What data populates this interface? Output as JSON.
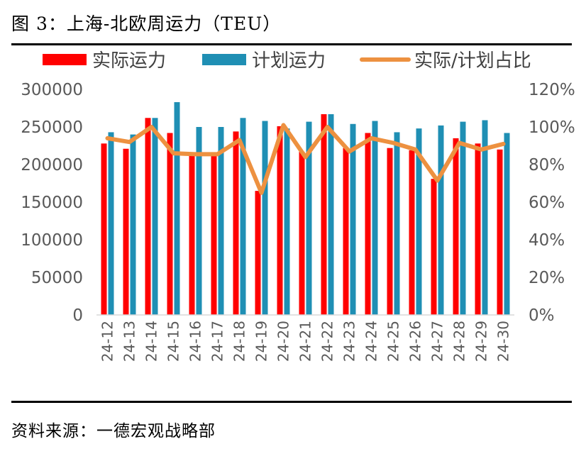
{
  "title": "图 3：上海-北欧周运力（TEU）",
  "source": "资料来源：一德宏观战略部",
  "colors": {
    "actual": "#ff0000",
    "planned": "#1f8fb4",
    "ratio": "#ed9140",
    "axis": "#d9d9d9",
    "text": "#595959"
  },
  "chart_data": {
    "type": "bar",
    "title": "上海-北欧周运力（TEU）",
    "categories": [
      "24-12",
      "24-13",
      "24-14",
      "24-15",
      "24-16",
      "24-17",
      "24-18",
      "24-19",
      "24-20",
      "24-21",
      "24-22",
      "24-23",
      "24-24",
      "24-25",
      "24-26",
      "24-27",
      "24-28",
      "24-29",
      "24-30"
    ],
    "series": [
      {
        "name": "实际运力",
        "type": "bar",
        "axis": "left",
        "values": [
          228000,
          221000,
          262000,
          242000,
          216000,
          214000,
          244000,
          165000,
          251000,
          217000,
          267000,
          222000,
          242000,
          222000,
          219000,
          181000,
          235000,
          228000,
          220000
        ]
      },
      {
        "name": "计划运力",
        "type": "bar",
        "axis": "left",
        "values": [
          243000,
          240000,
          262000,
          283000,
          250000,
          250000,
          262000,
          258000,
          248000,
          257000,
          267000,
          254000,
          258000,
          243000,
          248000,
          252000,
          257000,
          259000,
          242000
        ]
      },
      {
        "name": "实际/计划占比",
        "type": "line",
        "axis": "right",
        "values": [
          94,
          92,
          100,
          86,
          85.5,
          85.5,
          93,
          65,
          101,
          84,
          100,
          87,
          94,
          91.5,
          88,
          71.5,
          91.5,
          88,
          91
        ]
      }
    ],
    "y_left": {
      "min": 0,
      "max": 300000,
      "step": 50000,
      "ticks": [
        "0",
        "50000",
        "100000",
        "150000",
        "200000",
        "250000",
        "300000"
      ]
    },
    "y_right": {
      "min": 0,
      "max": 120,
      "step": 20,
      "ticks": [
        "0%",
        "20%",
        "40%",
        "60%",
        "80%",
        "100%",
        "120%"
      ]
    },
    "legend": [
      "实际运力",
      "计划运力",
      "实际/计划占比"
    ],
    "legend_position": "top",
    "grid": false
  }
}
